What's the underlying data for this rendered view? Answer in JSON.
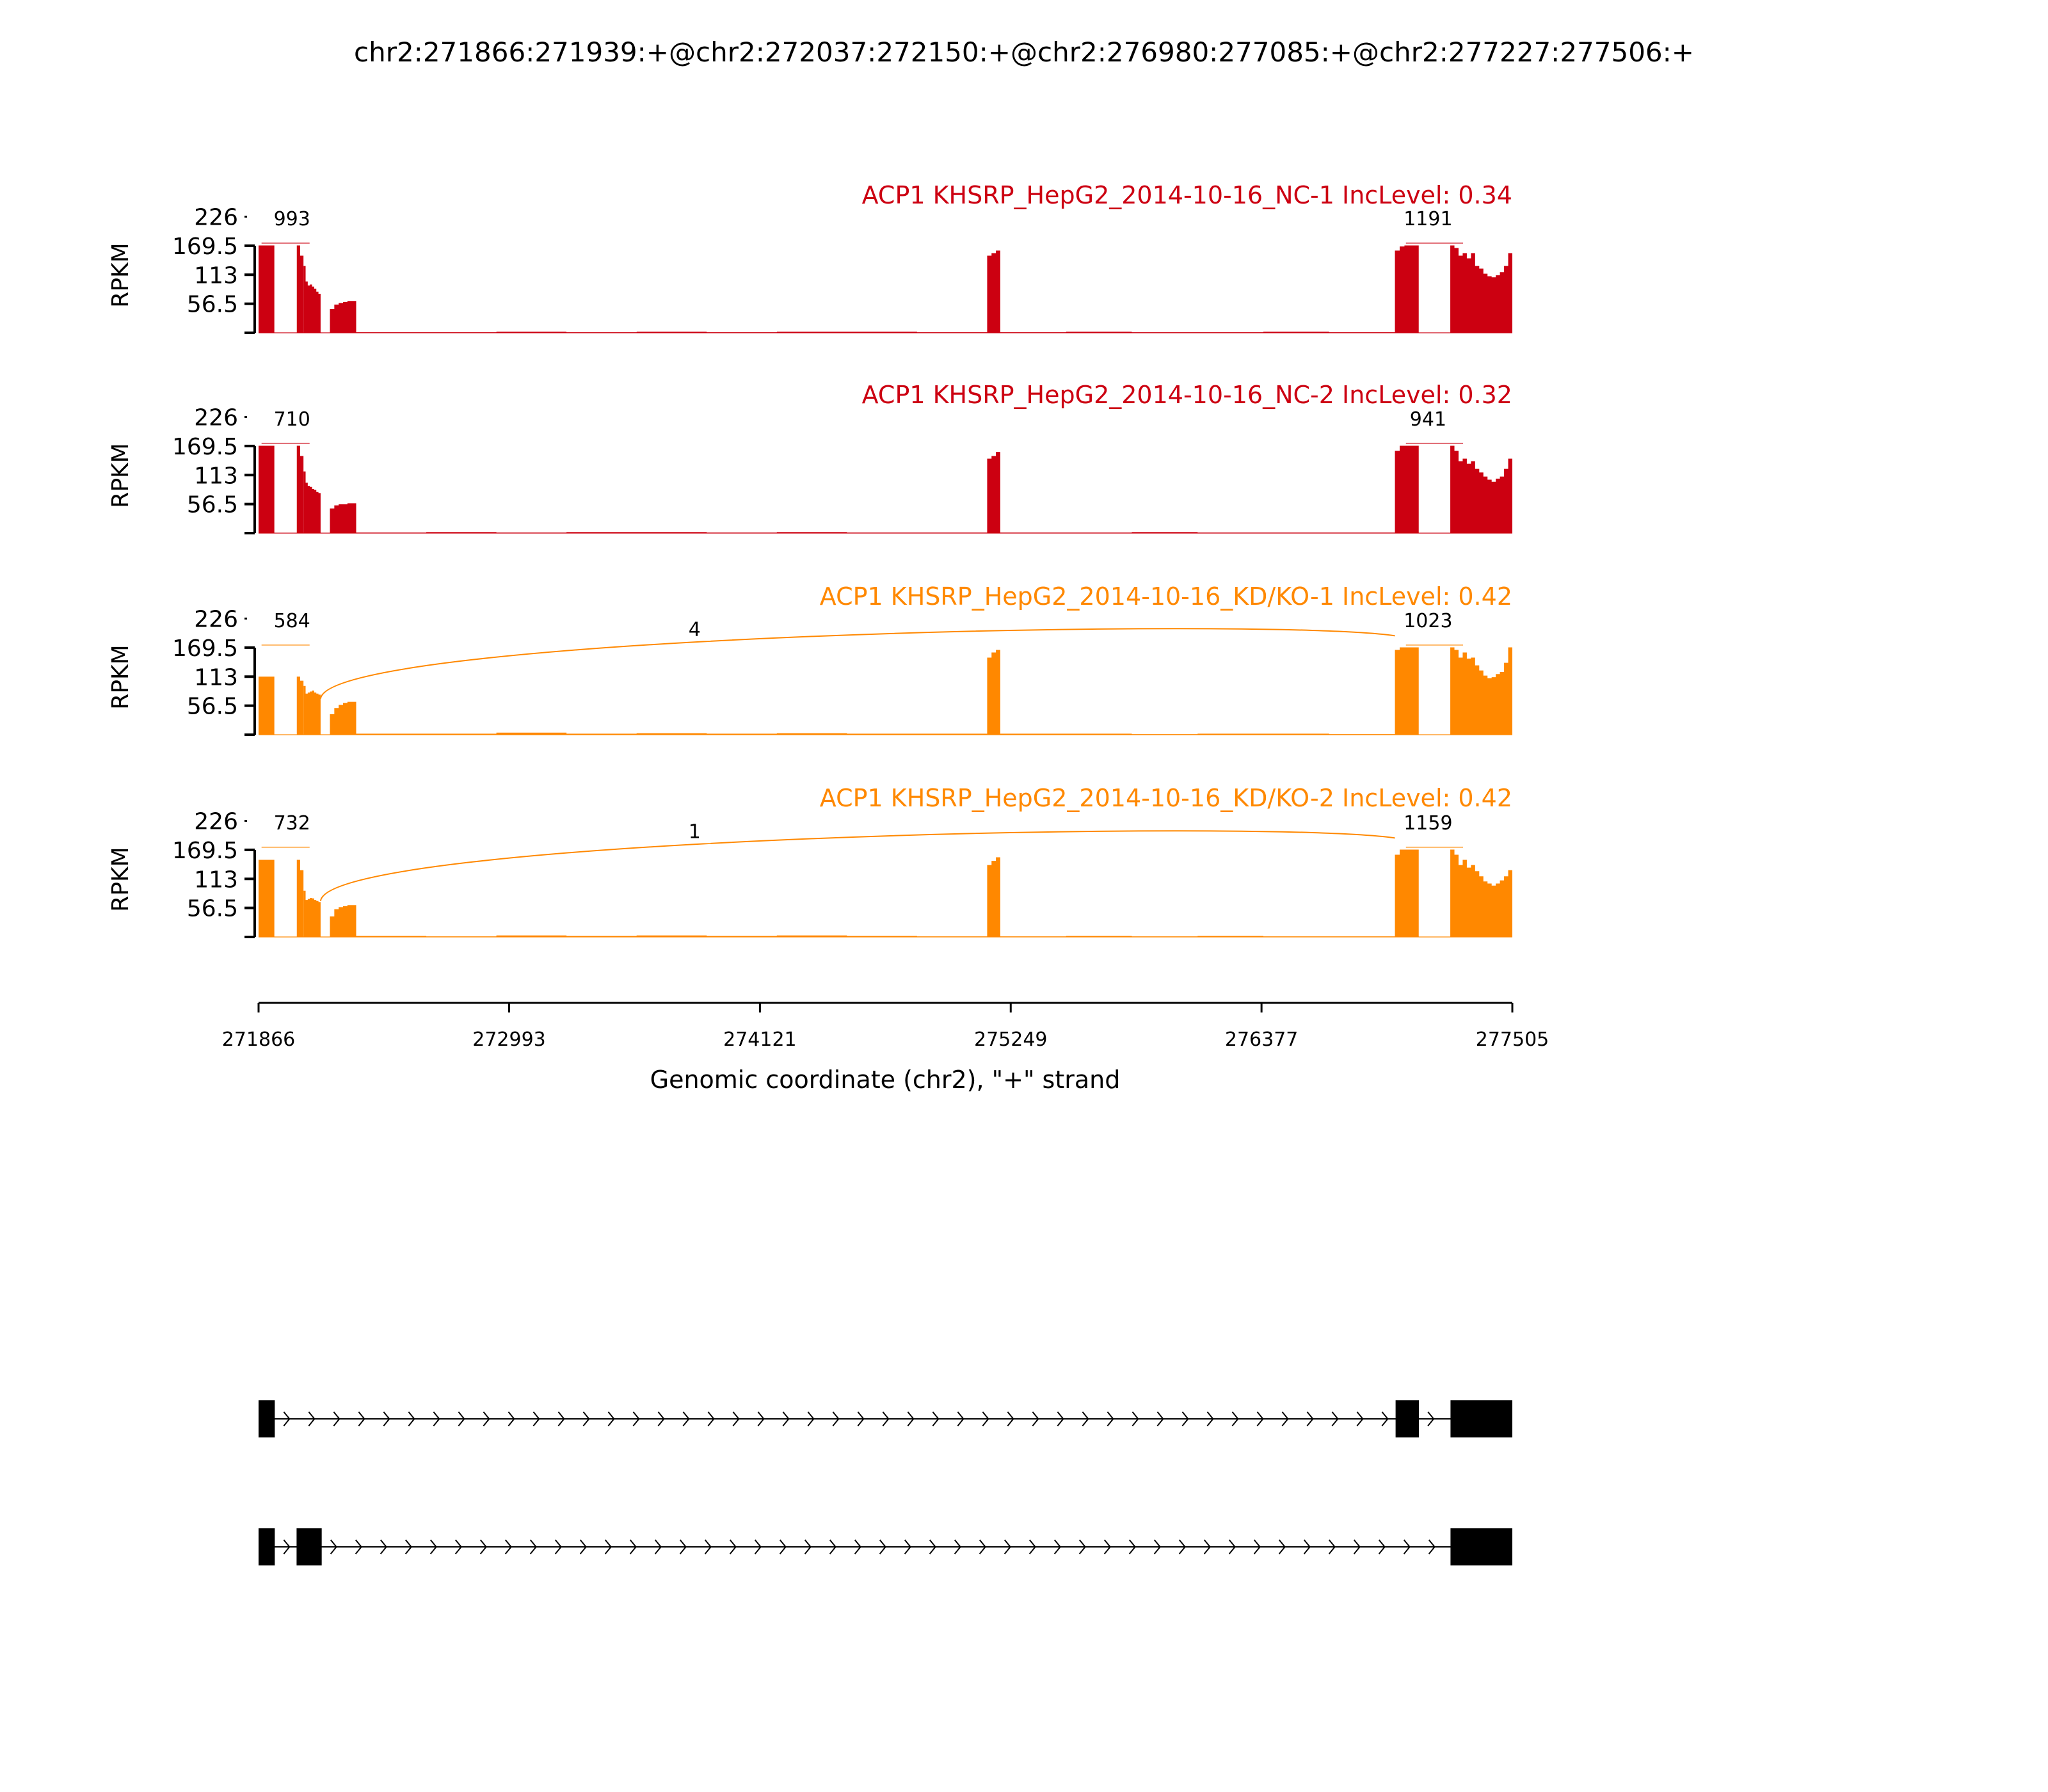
{
  "chart_data": {
    "type": "area",
    "title": "chr2:271866:271939:+@chr2:272037:272150:+@chr2:276980:277085:+@chr2:277227:277506:+",
    "xlabel": "Genomic coordinate (chr2), \"+\" strand",
    "ylabel": "RPKM",
    "xlim": [
      271866,
      277505
    ],
    "ylim": [
      0,
      226
    ],
    "xticks": [
      "271866",
      "272993",
      "274121",
      "275249",
      "276377",
      "277505"
    ],
    "xtick_values": [
      271866,
      272993,
      274121,
      275249,
      276377,
      277505
    ],
    "yticks": [
      "56.5",
      "113",
      "169.5",
      "226"
    ],
    "ytick_values": [
      56.5,
      113,
      169.5,
      226
    ],
    "colors": {
      "NC": "#CC0011",
      "KD": "#FF8800"
    },
    "tracks": [
      {
        "title": "ACP1 KHSRP_HepG2_2014-10-16_NC-1 IncLevel: 0.34",
        "color": "#CC0011",
        "coverage": [
          {
            "start": 271866,
            "end": 271937,
            "values": [
              170,
              170,
              170
            ]
          },
          {
            "start": 272038,
            "end": 272068,
            "values": [
              170,
              150
            ]
          },
          {
            "start": 272068,
            "end": 272145,
            "values": [
              130,
              100,
              92,
              94,
              90,
              86,
              80,
              76
            ]
          },
          {
            "start": 272187,
            "end": 272305,
            "values": [
              46,
              55,
              58,
              60,
              62,
              62
            ]
          },
          {
            "start": 272305,
            "end": 275143,
            "values": [
              1,
              1,
              2,
              1,
              2,
              1,
              2,
              2,
              1
            ]
          },
          {
            "start": 275143,
            "end": 275202,
            "values": [
              150,
              155,
              160
            ]
          },
          {
            "start": 275202,
            "end": 276977,
            "values": [
              1,
              2,
              1,
              1,
              2,
              1
            ]
          },
          {
            "start": 276977,
            "end": 277084,
            "values": [
              160,
              168,
              170,
              170,
              170
            ]
          },
          {
            "start": 277226,
            "end": 277505,
            "values": [
              170,
              165,
              150,
              155,
              145,
              155,
              130,
              125,
              115,
              110,
              108,
              112,
              118,
              130,
              155
            ]
          }
        ],
        "junctions": [
          {
            "from": 271937,
            "to": 272038,
            "count": "993"
          },
          {
            "from": 277084,
            "to": 277226,
            "count": "1191"
          }
        ]
      },
      {
        "title": "ACP1 KHSRP_HepG2_2014-10-16_NC-2 IncLevel: 0.32",
        "color": "#CC0011",
        "coverage": [
          {
            "start": 271866,
            "end": 271937,
            "values": [
              170,
              170,
              170
            ]
          },
          {
            "start": 272038,
            "end": 272068,
            "values": [
              170,
              150
            ]
          },
          {
            "start": 272068,
            "end": 272145,
            "values": [
              120,
              98,
              92,
              90,
              86,
              84,
              80,
              78
            ]
          },
          {
            "start": 272187,
            "end": 272305,
            "values": [
              48,
              54,
              56,
              56,
              58,
              58
            ]
          },
          {
            "start": 272305,
            "end": 275143,
            "values": [
              1,
              2,
              1,
              2,
              2,
              1,
              2,
              1,
              1
            ]
          },
          {
            "start": 275143,
            "end": 275202,
            "values": [
              145,
              150,
              158
            ]
          },
          {
            "start": 275202,
            "end": 276977,
            "values": [
              1,
              1,
              2,
              1,
              1,
              1
            ]
          },
          {
            "start": 276977,
            "end": 277084,
            "values": [
              160,
              170,
              170,
              170,
              170
            ]
          },
          {
            "start": 277226,
            "end": 277505,
            "values": [
              170,
              160,
              140,
              145,
              135,
              140,
              125,
              118,
              110,
              104,
              100,
              106,
              110,
              125,
              145
            ]
          }
        ],
        "junctions": [
          {
            "from": 271937,
            "to": 272038,
            "count": "710"
          },
          {
            "from": 277084,
            "to": 277226,
            "count": "941"
          }
        ]
      },
      {
        "title": "ACP1 KHSRP_HepG2_2014-10-16_KD/KO-1 IncLevel: 0.42",
        "color": "#FF8800",
        "coverage": [
          {
            "start": 271866,
            "end": 271937,
            "values": [
              113,
              113,
              113
            ]
          },
          {
            "start": 272038,
            "end": 272068,
            "values": [
              113,
              105
            ]
          },
          {
            "start": 272068,
            "end": 272145,
            "values": [
              95,
              80,
              82,
              84,
              86,
              82,
              80,
              78
            ]
          },
          {
            "start": 272187,
            "end": 272305,
            "values": [
              40,
              52,
              58,
              62,
              64,
              64
            ]
          },
          {
            "start": 272305,
            "end": 275143,
            "values": [
              2,
              2,
              4,
              2,
              3,
              2,
              3,
              2,
              2
            ]
          },
          {
            "start": 275143,
            "end": 275202,
            "values": [
              150,
              160,
              165
            ]
          },
          {
            "start": 275202,
            "end": 276977,
            "values": [
              2,
              2,
              1,
              2,
              2,
              1
            ]
          },
          {
            "start": 276977,
            "end": 277084,
            "values": [
              165,
              170,
              170,
              170,
              170
            ]
          },
          {
            "start": 277226,
            "end": 277505,
            "values": [
              170,
              165,
              150,
              160,
              148,
              150,
              135,
              125,
              115,
              110,
              112,
              118,
              122,
              140,
              170
            ]
          }
        ],
        "junctions": [
          {
            "from": 271937,
            "to": 272038,
            "count": "584"
          },
          {
            "from": 272145,
            "to": 276977,
            "count": "4",
            "long": true
          },
          {
            "from": 277084,
            "to": 277226,
            "count": "1023"
          }
        ]
      },
      {
        "title": "ACP1 KHSRP_HepG2_2014-10-16_KD/KO-2 IncLevel: 0.42",
        "color": "#FF8800",
        "coverage": [
          {
            "start": 271866,
            "end": 271937,
            "values": [
              150,
              150,
              150
            ]
          },
          {
            "start": 272038,
            "end": 272068,
            "values": [
              150,
              130
            ]
          },
          {
            "start": 272068,
            "end": 272145,
            "values": [
              90,
              72,
              74,
              76,
              75,
              72,
              70,
              68
            ]
          },
          {
            "start": 272187,
            "end": 272305,
            "values": [
              40,
              54,
              58,
              60,
              62,
              62
            ]
          },
          {
            "start": 272305,
            "end": 275143,
            "values": [
              2,
              1,
              3,
              2,
              3,
              2,
              3,
              2,
              1
            ]
          },
          {
            "start": 275143,
            "end": 275202,
            "values": [
              140,
              148,
              155
            ]
          },
          {
            "start": 275202,
            "end": 276977,
            "values": [
              1,
              2,
              1,
              2,
              1,
              1
            ]
          },
          {
            "start": 276977,
            "end": 277084,
            "values": [
              160,
              170,
              170,
              170,
              170
            ]
          },
          {
            "start": 277226,
            "end": 277505,
            "values": [
              170,
              160,
              140,
              150,
              135,
              140,
              128,
              118,
              108,
              104,
              100,
              104,
              110,
              118,
              130
            ]
          }
        ],
        "junctions": [
          {
            "from": 271937,
            "to": 272038,
            "count": "732"
          },
          {
            "from": 272145,
            "to": 276977,
            "count": "1",
            "long": true
          },
          {
            "from": 277084,
            "to": 277226,
            "count": "1159"
          }
        ]
      }
    ],
    "gene_models": [
      {
        "exons": [
          [
            271866,
            271939
          ],
          [
            276980,
            277085
          ],
          [
            277227,
            277505
          ]
        ]
      },
      {
        "exons": [
          [
            271866,
            271939
          ],
          [
            272037,
            272150
          ],
          [
            277227,
            277505
          ]
        ]
      }
    ]
  }
}
